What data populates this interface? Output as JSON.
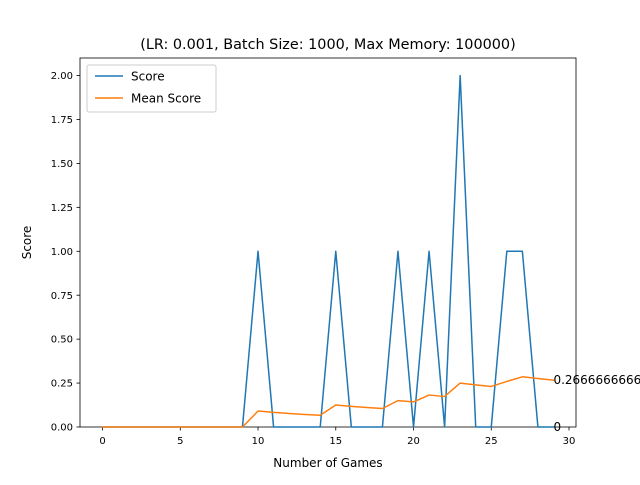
{
  "colors": {
    "score": "#1f77b4",
    "mean_score": "#ff7f0e",
    "axes": "#000000",
    "legend_border": "#cccccc"
  },
  "chart_data": {
    "type": "line",
    "title": "(LR: 0.001, Batch Size: 1000, Max Memory: 100000)",
    "xlabel": "Number of Games",
    "ylabel": "Score",
    "xlim": [
      -1.45,
      30.45
    ],
    "ylim": [
      0,
      2.1
    ],
    "grid": false,
    "legend_position": "top-left",
    "x_ticks": [
      0,
      5,
      10,
      15,
      20,
      25,
      30
    ],
    "x_tick_labels": [
      "0",
      "5",
      "10",
      "15",
      "20",
      "25",
      "30"
    ],
    "y_ticks": [
      0,
      0.25,
      0.5,
      0.75,
      1.0,
      1.25,
      1.5,
      1.75,
      2.0
    ],
    "y_tick_labels": [
      "0.00",
      "0.25",
      "0.50",
      "0.75",
      "1.00",
      "1.25",
      "1.50",
      "1.75",
      "2.00"
    ],
    "x": [
      0,
      1,
      2,
      3,
      4,
      5,
      6,
      7,
      8,
      9,
      10,
      11,
      12,
      13,
      14,
      15,
      16,
      17,
      18,
      19,
      20,
      21,
      22,
      23,
      24,
      25,
      26,
      27,
      28,
      29
    ],
    "series": [
      {
        "name": "Score",
        "color": "#1f77b4",
        "values": [
          0,
          0,
          0,
          0,
          0,
          0,
          0,
          0,
          0,
          0,
          1,
          0,
          0,
          0,
          0,
          1,
          0,
          0,
          0,
          1,
          0,
          1,
          0,
          2,
          0,
          0,
          1,
          1,
          0,
          0
        ]
      },
      {
        "name": "Mean Score",
        "color": "#ff7f0e",
        "values": [
          0,
          0,
          0,
          0,
          0,
          0,
          0,
          0,
          0,
          0,
          0.0909,
          0.0833,
          0.0769,
          0.0714,
          0.0667,
          0.125,
          0.1176,
          0.1111,
          0.1053,
          0.15,
          0.1429,
          0.1818,
          0.1739,
          0.25,
          0.24,
          0.2308,
          0.2593,
          0.2857,
          0.2759,
          0.2667
        ]
      }
    ],
    "annotations": [
      {
        "text": "0.2666666666",
        "x": 29,
        "y": 0.2667
      },
      {
        "text": "0",
        "x": 29,
        "y": 0
      }
    ]
  }
}
